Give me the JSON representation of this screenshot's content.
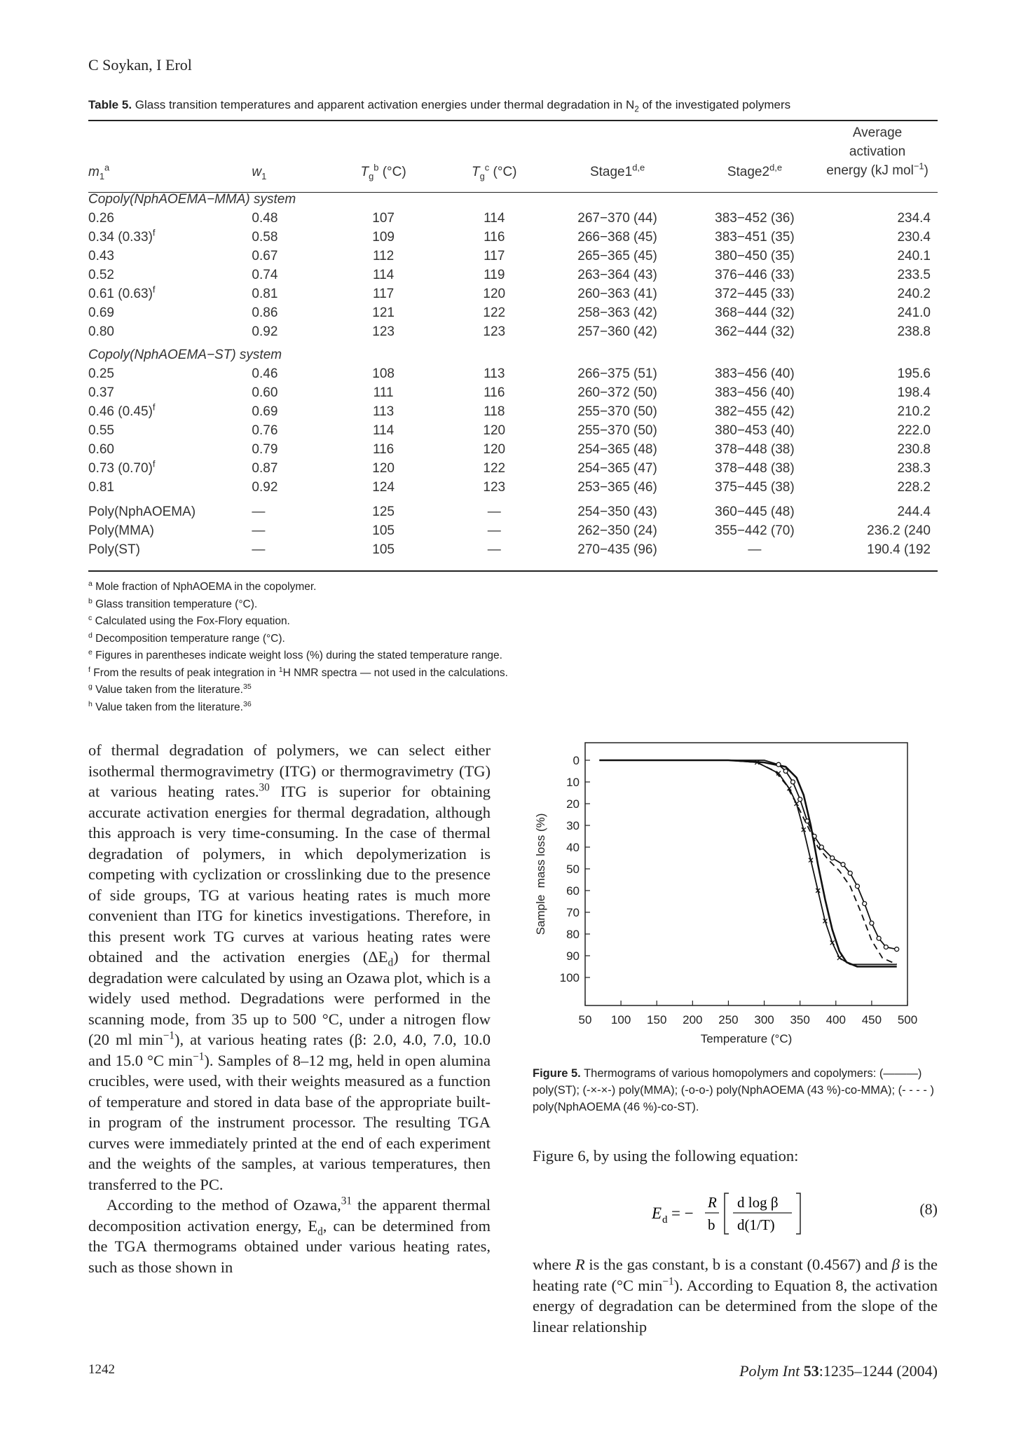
{
  "header": {
    "authors": "C Soykan, I Erol"
  },
  "table": {
    "caption_label": "Table 5.",
    "caption_text_1": "Glass transition temperatures and apparent activation energies under thermal degradation in N",
    "caption_sub": "2",
    "caption_text_2": "of the investigated polymers",
    "headers": {
      "m1": "m",
      "m1_sub": "1",
      "m1_sup": "a",
      "w1": "w",
      "w1_sub": "1",
      "tg_b": "T",
      "tg_b_sub": "g",
      "tg_b_sup": "b",
      "tg_b_unit": "(°C)",
      "tg_c": "T",
      "tg_c_sub": "g",
      "tg_c_sup": "c",
      "tg_c_unit": "(°C)",
      "stage1": "Stage1",
      "stage1_sup": "d,e",
      "stage2": "Stage2",
      "stage2_sup": "d,e",
      "avg_line1": "Average",
      "avg_line2": "activation",
      "avg_line3": "energy (kJ mol",
      "avg_sup": "−1",
      "avg_close": ")"
    },
    "system1_label": "Copoly(NphAOEMA−MMA) system",
    "system1_rows": [
      {
        "m1": "0.26",
        "m1_sup": "",
        "w1": "0.48",
        "tgb": "107",
        "tgc": "114",
        "s1": "267−370 (44)",
        "s2": "383−452 (36)",
        "ea": "234.4"
      },
      {
        "m1": "0.34 (0.33)",
        "m1_sup": "f",
        "w1": "0.58",
        "tgb": "109",
        "tgc": "116",
        "s1": "266−368 (45)",
        "s2": "383−451 (35)",
        "ea": "230.4"
      },
      {
        "m1": "0.43",
        "m1_sup": "",
        "w1": "0.67",
        "tgb": "112",
        "tgc": "117",
        "s1": "265−365 (45)",
        "s2": "380−450 (35)",
        "ea": "240.1"
      },
      {
        "m1": "0.52",
        "m1_sup": "",
        "w1": "0.74",
        "tgb": "114",
        "tgc": "119",
        "s1": "263−364 (43)",
        "s2": "376−446 (33)",
        "ea": "233.5"
      },
      {
        "m1": "0.61 (0.63)",
        "m1_sup": "f",
        "w1": "0.81",
        "tgb": "117",
        "tgc": "120",
        "s1": "260−363 (41)",
        "s2": "372−445 (33)",
        "ea": "240.2"
      },
      {
        "m1": "0.69",
        "m1_sup": "",
        "w1": "0.86",
        "tgb": "121",
        "tgc": "122",
        "s1": "258−363 (42)",
        "s2": "368−444 (32)",
        "ea": "241.0"
      },
      {
        "m1": "0.80",
        "m1_sup": "",
        "w1": "0.92",
        "tgb": "123",
        "tgc": "123",
        "s1": "257−360 (42)",
        "s2": "362−444 (32)",
        "ea": "238.8"
      }
    ],
    "system2_label": "Copoly(NphAOEMA−ST) system",
    "system2_rows": [
      {
        "m1": "0.25",
        "m1_sup": "",
        "w1": "0.46",
        "tgb": "108",
        "tgc": "113",
        "s1": "266−375 (51)",
        "s2": "383−456 (40)",
        "ea": "195.6"
      },
      {
        "m1": "0.37",
        "m1_sup": "",
        "w1": "0.60",
        "tgb": "111",
        "tgc": "116",
        "s1": "260−372 (50)",
        "s2": "383−456 (40)",
        "ea": "198.4"
      },
      {
        "m1": "0.46 (0.45)",
        "m1_sup": "f",
        "w1": "0.69",
        "tgb": "113",
        "tgc": "118",
        "s1": "255−370 (50)",
        "s2": "382−455 (42)",
        "ea": "210.2"
      },
      {
        "m1": "0.55",
        "m1_sup": "",
        "w1": "0.76",
        "tgb": "114",
        "tgc": "120",
        "s1": "255−370 (50)",
        "s2": "380−453 (40)",
        "ea": "222.0"
      },
      {
        "m1": "0.60",
        "m1_sup": "",
        "w1": "0.79",
        "tgb": "116",
        "tgc": "120",
        "s1": "254−365 (48)",
        "s2": "378−448 (38)",
        "ea": "230.8"
      },
      {
        "m1": "0.73 (0.70)",
        "m1_sup": "f",
        "w1": "0.87",
        "tgb": "120",
        "tgc": "122",
        "s1": "254−365 (47)",
        "s2": "378−448 (38)",
        "ea": "238.3"
      },
      {
        "m1": "0.81",
        "m1_sup": "",
        "w1": "0.92",
        "tgb": "124",
        "tgc": "123",
        "s1": "253−365 (46)",
        "s2": "375−445 (38)",
        "ea": "228.2"
      }
    ],
    "homo_rows": [
      {
        "m1": "Poly(NphAOEMA)",
        "m1_sup": "",
        "w1": "—",
        "tgb": "125",
        "tgc": "—",
        "s1": "254−350 (43)",
        "s2": "360−445 (48)",
        "ea": "244.4"
      },
      {
        "m1": "Poly(MMA)",
        "m1_sup": "",
        "w1": "—",
        "tgb": "105",
        "tgc": "—",
        "s1": "262−350 (24)",
        "s2": "355−442 (70)",
        "ea": "236.2 (240"
      },
      {
        "m1": "Poly(ST)",
        "m1_sup": "",
        "w1": "—",
        "tgb": "105",
        "tgc": "—",
        "s1": "270−435 (96)",
        "s2": "—",
        "ea": "190.4 (192"
      }
    ],
    "footnotes": [
      {
        "mark": "a",
        "pre": "Mole fraction of NphAOEMA in the copolymer.",
        "sup": "",
        "post": ""
      },
      {
        "mark": "b",
        "pre": "Glass transition temperature (°C).",
        "sup": "",
        "post": ""
      },
      {
        "mark": "c",
        "pre": "Calculated using the Fox-Flory equation.",
        "sup": "",
        "post": ""
      },
      {
        "mark": "d",
        "pre": "Decomposition temperature range (°C).",
        "sup": "",
        "post": ""
      },
      {
        "mark": "e",
        "pre": "Figures in parentheses indicate weight loss (%) during the stated temperature range.",
        "sup": "",
        "post": ""
      },
      {
        "mark": "f",
        "pre": "From the results of peak integration in ",
        "sup": "1",
        "post": "H NMR spectra — not used in the calculations."
      },
      {
        "mark": "g",
        "pre": "Value taken from the literature.",
        "sup": "35",
        "post": ""
      },
      {
        "mark": "h",
        "pre": "Value taken from the literature.",
        "sup": "36",
        "post": ""
      }
    ]
  },
  "body_left": {
    "p1_a": "of thermal degradation of polymers, we can select either isothermal thermogravimetry (ITG) or thermogravimetry (TG) at various heating rates.",
    "p1_ref30": "30",
    "p1_b": " ITG is superior for obtaining accurate activation energies for thermal degradation, although this approach is very time-consuming. In the case of thermal degradation of polymers, in which depolymerization is competing with cyclization or crosslinking due to the presence of side groups, TG at various heating rates is much more convenient than ITG for kinetics investigations. Therefore, in this present work TG curves at various heating rates were obtained and the activation energies (ΔE",
    "p1_sub_d": "d",
    "p1_c": ") for thermal degradation were calculated by using an Ozawa plot, which is a widely used method. Degradations were performed in the scanning mode, from 35 up to 500 °C, under a nitrogen flow (20 ml min",
    "p1_sup_m1": "−1",
    "p1_d": "), at various heating rates (β: 2.0, 4.0, 7.0, 10.0 and 15.0 °C min",
    "p1_sup_m1b": "−1",
    "p1_e": "). Samples of 8–12 mg, held in open alumina crucibles, were used, with their weights measured as a function of temperature and stored in data base of the appropriate built-in program of the instrument processor. The resulting TGA curves were immediately printed at the end of each experiment and the weights of the samples, at various temperatures, then transferred to the PC.",
    "p2_a": "According to the method of Ozawa,",
    "p2_ref31": "31",
    "p2_b": " the apparent thermal decomposition activation energy, E",
    "p2_sub_d": "d",
    "p2_c": ", can be determined from the TGA thermograms obtained under various heating rates, such as those shown in"
  },
  "figure": {
    "caption_label": "Figure 5.",
    "caption_text": "Thermograms of various homopolymers and copolymers: (———) poly(ST); (-×-×-) poly(MMA); (-o-o-) poly(NphAOEMA (43 %)-co-MMA); (- - - - ) poly(NphAOEMA (46 %)-co-ST)."
  },
  "chart_data": {
    "type": "line",
    "xlabel": "Temperature (°C)",
    "ylabel": "Sample  mass loss (%)",
    "xlim": [
      50,
      500
    ],
    "ylim": [
      0,
      100
    ],
    "y_inverted": true,
    "x_ticks": [
      50,
      100,
      150,
      200,
      250,
      300,
      350,
      400,
      450,
      500
    ],
    "y_ticks": [
      0,
      10,
      20,
      30,
      40,
      50,
      60,
      70,
      80,
      90,
      100
    ],
    "series": [
      {
        "style": "solid",
        "marker": "none",
        "x": [
          70,
          250,
          300,
          330,
          345,
          355,
          365,
          375,
          385,
          395,
          405,
          415,
          430,
          450,
          485
        ],
        "y": [
          0,
          0,
          1,
          3,
          8,
          16,
          30,
          48,
          64,
          78,
          88,
          93,
          95,
          95,
          95
        ]
      },
      {
        "style": "solid",
        "marker": "x",
        "x": [
          70,
          250,
          290,
          320,
          335,
          345,
          355,
          365,
          375,
          385,
          395,
          405,
          420,
          440,
          485
        ],
        "y": [
          0,
          0,
          1,
          6,
          13,
          20,
          32,
          46,
          60,
          74,
          84,
          91,
          94,
          94,
          94
        ]
      },
      {
        "style": "solid",
        "marker": "o",
        "x": [
          70,
          250,
          300,
          320,
          330,
          340,
          350,
          360,
          370,
          380,
          395,
          410,
          420,
          430,
          440,
          450,
          460,
          470,
          485
        ],
        "y": [
          0,
          0,
          0,
          2,
          5,
          10,
          18,
          28,
          35,
          40,
          45,
          48,
          52,
          58,
          66,
          75,
          82,
          86,
          87
        ]
      },
      {
        "style": "dashed",
        "marker": "none",
        "x": [
          70,
          250,
          290,
          315,
          330,
          345,
          360,
          375,
          390,
          405,
          420,
          435,
          450,
          465,
          485
        ],
        "y": [
          0,
          0,
          1,
          5,
          11,
          20,
          30,
          40,
          46,
          51,
          58,
          70,
          83,
          91,
          94
        ]
      }
    ]
  },
  "body_right": {
    "lead": "Figure 6, by using the following equation:",
    "eq_lhs": "E",
    "eq_lhs_sub": "d",
    "eq_eq": " = −",
    "eq_R": "R",
    "eq_b": "b",
    "eq_num": "d log β",
    "eq_den": "d(1/T)",
    "eq_number": "(8)",
    "p_a": "where ",
    "p_R": "R",
    "p_b": " is the gas constant, b is a constant (0.4567) and ",
    "p_beta": "β",
    "p_c": " is the heating rate (°C min",
    "p_sup": "−1",
    "p_d": "). According to Equation 8, the activation energy of degradation can be determined from the slope of the linear relationship"
  },
  "footer": {
    "page_number": "1242",
    "journal_name": "Polym Int",
    "journal_volume": "53",
    "journal_rest": ":1235–1244 (2004)"
  }
}
